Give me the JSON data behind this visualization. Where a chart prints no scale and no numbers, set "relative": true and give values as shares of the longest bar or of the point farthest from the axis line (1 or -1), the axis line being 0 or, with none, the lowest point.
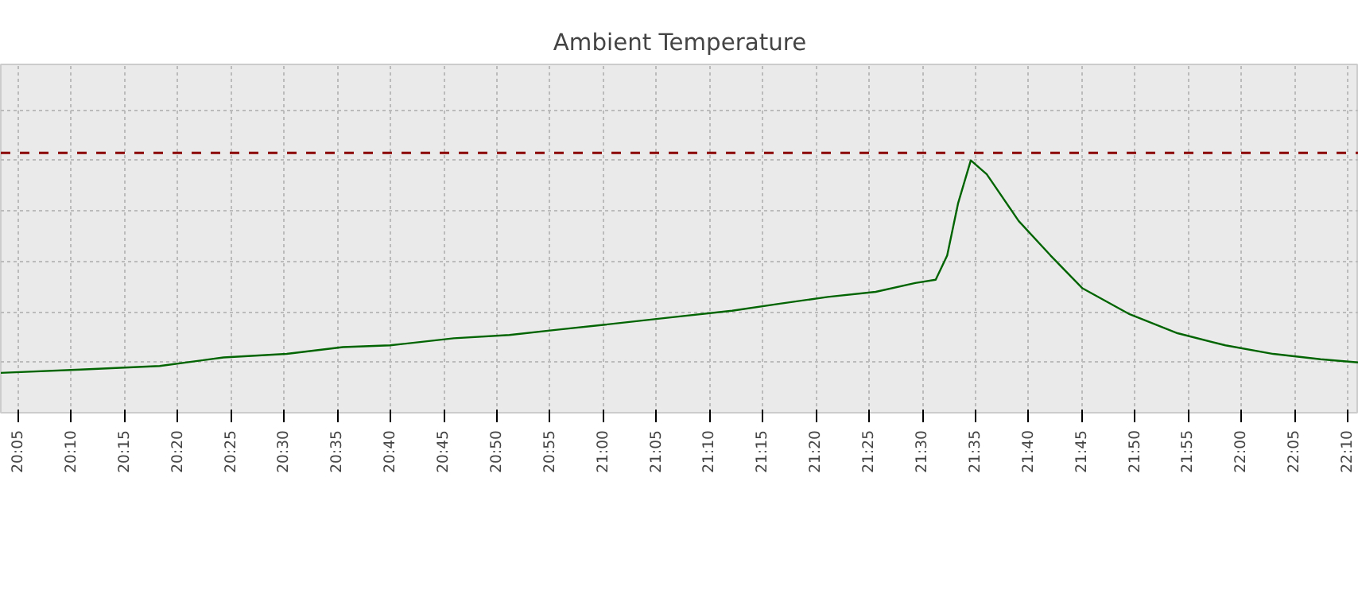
{
  "chart_data": {
    "type": "line",
    "title": "Ambient Temperature",
    "relative": true,
    "x": [
      20.056,
      20.181,
      20.305,
      20.405,
      20.504,
      20.592,
      20.666,
      20.766,
      20.853,
      20.928,
      21.003,
      21.103,
      21.202,
      21.277,
      21.352,
      21.427,
      21.489,
      21.521,
      21.539,
      21.556,
      21.576,
      21.601,
      21.651,
      21.701,
      21.751,
      21.825,
      21.9,
      21.975,
      22.05,
      22.124,
      22.184
    ],
    "series": [
      {
        "color": "#006400",
        "values": [
          0.158,
          0.171,
          0.185,
          0.219,
          0.233,
          0.26,
          0.267,
          0.295,
          0.308,
          0.329,
          0.349,
          0.377,
          0.404,
          0.432,
          0.459,
          0.479,
          0.514,
          0.527,
          0.623,
          0.829,
          1.0,
          0.945,
          0.76,
          0.623,
          0.493,
          0.39,
          0.315,
          0.267,
          0.233,
          0.212,
          0.199
        ]
      }
    ],
    "xlim": [
      20.056,
      22.184
    ],
    "xticks": [
      {
        "value": 20.0833,
        "label": "20:05"
      },
      {
        "value": 20.1667,
        "label": "20:10"
      },
      {
        "value": 20.25,
        "label": "20:15"
      },
      {
        "value": 20.3333,
        "label": "20:20"
      },
      {
        "value": 20.4167,
        "label": "20:25"
      },
      {
        "value": 20.5,
        "label": "20:30"
      },
      {
        "value": 20.5833,
        "label": "20:35"
      },
      {
        "value": 20.6667,
        "label": "20:40"
      },
      {
        "value": 20.75,
        "label": "20:45"
      },
      {
        "value": 20.8333,
        "label": "20:50"
      },
      {
        "value": 20.9167,
        "label": "20:55"
      },
      {
        "value": 21.0,
        "label": "21:00"
      },
      {
        "value": 21.0833,
        "label": "21:05"
      },
      {
        "value": 21.1667,
        "label": "21:10"
      },
      {
        "value": 21.25,
        "label": "21:15"
      },
      {
        "value": 21.3333,
        "label": "21:20"
      },
      {
        "value": 21.4167,
        "label": "21:25"
      },
      {
        "value": 21.5,
        "label": "21:30"
      },
      {
        "value": 21.5833,
        "label": "21:35"
      },
      {
        "value": 21.6667,
        "label": "21:40"
      },
      {
        "value": 21.75,
        "label": "21:45"
      },
      {
        "value": 21.8333,
        "label": "21:50"
      },
      {
        "value": 21.9167,
        "label": "21:55"
      },
      {
        "value": 22.0,
        "label": "22:00"
      },
      {
        "value": 22.0833,
        "label": "22:05"
      },
      {
        "value": 22.1667,
        "label": "22:10"
      }
    ],
    "ref_lines": [
      {
        "axis": "y",
        "value": 1.03,
        "color": "#8b0000",
        "line_style": "dashed"
      }
    ],
    "grid": true,
    "line_style": "solid",
    "marker": "none"
  }
}
